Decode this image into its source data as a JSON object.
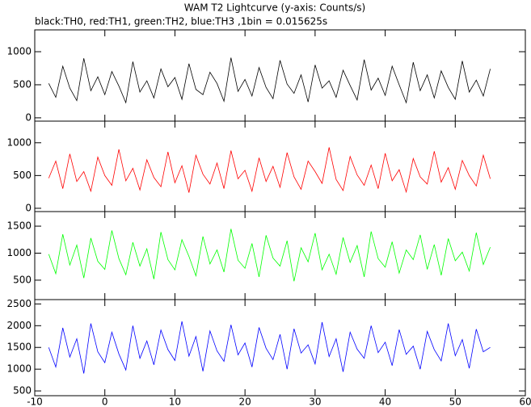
{
  "chart_data": [
    {
      "type": "line",
      "title": "WAM T2 Lightcurve (y-axis: Counts/s)",
      "subtitle": "black:TH0, red:TH1, green:TH2, blue:TH3 ,1bin = 0.015625s",
      "x": [
        -8,
        -7,
        -6,
        -5,
        -4,
        -3,
        -2,
        -1,
        0,
        1,
        2,
        3,
        4,
        5,
        6,
        7,
        8,
        9,
        10,
        11,
        12,
        13,
        14,
        15,
        16,
        17,
        18,
        19,
        20,
        21,
        22,
        23,
        24,
        25,
        26,
        27,
        28,
        29,
        30,
        31,
        32,
        33,
        34,
        35,
        36,
        37,
        38,
        39,
        40,
        41,
        42,
        43,
        44,
        45,
        46,
        47,
        48,
        49,
        50,
        51,
        52,
        53,
        54,
        55
      ],
      "xlim": [
        -10,
        60
      ],
      "xticks": [
        -10,
        0,
        10,
        20,
        30,
        40,
        50,
        60
      ],
      "ylim": [
        -50,
        1330
      ],
      "yticks": [
        0,
        500,
        1000
      ],
      "series": [
        {
          "color": "#000000",
          "values": [
            520,
            310,
            780,
            450,
            260,
            900,
            410,
            620,
            350,
            700,
            480,
            230,
            850,
            390,
            560,
            300,
            740,
            470,
            610,
            280,
            820,
            430,
            350,
            690,
            520,
            250,
            910,
            400,
            580,
            330,
            760,
            460,
            290,
            870,
            510,
            370,
            650,
            240,
            800,
            450,
            560,
            310,
            720,
            490,
            270,
            880,
            420,
            600,
            340,
            780,
            500,
            230,
            840,
            410,
            650,
            300,
            710,
            460,
            280,
            860,
            390,
            570,
            330,
            740
          ]
        }
      ]
    },
    {
      "type": "line",
      "x": [
        -8,
        -7,
        -6,
        -5,
        -4,
        -3,
        -2,
        -1,
        0,
        1,
        2,
        3,
        4,
        5,
        6,
        7,
        8,
        9,
        10,
        11,
        12,
        13,
        14,
        15,
        16,
        17,
        18,
        19,
        20,
        21,
        22,
        23,
        24,
        25,
        26,
        27,
        28,
        29,
        30,
        31,
        32,
        33,
        34,
        35,
        36,
        37,
        38,
        39,
        40,
        41,
        42,
        43,
        44,
        45,
        46,
        47,
        48,
        49,
        50,
        51,
        52,
        53,
        54,
        55
      ],
      "xlim": [
        -10,
        60
      ],
      "xticks": [
        -10,
        0,
        10,
        20,
        30,
        40,
        50,
        60
      ],
      "ylim": [
        -50,
        1330
      ],
      "yticks": [
        0,
        500,
        1000
      ],
      "series": [
        {
          "color": "#ff0000",
          "values": [
            460,
            720,
            300,
            830,
            410,
            560,
            260,
            780,
            500,
            350,
            900,
            420,
            610,
            280,
            740,
            470,
            330,
            860,
            390,
            650,
            240,
            810,
            520,
            370,
            690,
            300,
            880,
            450,
            580,
            260,
            770,
            410,
            640,
            320,
            850,
            480,
            290,
            720,
            560,
            380,
            930,
            440,
            270,
            790,
            510,
            350,
            660,
            300,
            840,
            420,
            590,
            250,
            760,
            480,
            370,
            870,
            400,
            620,
            290,
            730,
            500,
            340,
            810,
            450
          ]
        }
      ]
    },
    {
      "type": "line",
      "x": [
        -8,
        -7,
        -6,
        -5,
        -4,
        -3,
        -2,
        -1,
        0,
        1,
        2,
        3,
        4,
        5,
        6,
        7,
        8,
        9,
        10,
        11,
        12,
        13,
        14,
        15,
        16,
        17,
        18,
        19,
        20,
        21,
        22,
        23,
        24,
        25,
        26,
        27,
        28,
        29,
        30,
        31,
        32,
        33,
        34,
        35,
        36,
        37,
        38,
        39,
        40,
        41,
        42,
        43,
        44,
        45,
        46,
        47,
        48,
        49,
        50,
        51,
        52,
        53,
        54,
        55
      ],
      "xlim": [
        -10,
        60
      ],
      "xticks": [
        -10,
        0,
        10,
        20,
        30,
        40,
        50,
        60
      ],
      "ylim": [
        140,
        1770
      ],
      "yticks": [
        500,
        1000,
        1500
      ],
      "series": [
        {
          "color": "#00ff00",
          "values": [
            980,
            620,
            1350,
            780,
            1150,
            540,
            1280,
            850,
            700,
            1420,
            900,
            600,
            1200,
            760,
            1080,
            520,
            1390,
            880,
            690,
            1250,
            940,
            580,
            1310,
            800,
            1060,
            650,
            1450,
            870,
            720,
            1180,
            560,
            1330,
            910,
            760,
            1230,
            480,
            1100,
            840,
            1370,
            690,
            980,
            610,
            1290,
            830,
            1140,
            560,
            1400,
            900,
            740,
            1210,
            630,
            1060,
            880,
            1340,
            700,
            1160,
            590,
            1270,
            860,
            1020,
            670,
            1380,
            790,
            1110
          ]
        }
      ]
    },
    {
      "type": "line",
      "x": [
        -8,
        -7,
        -6,
        -5,
        -4,
        -3,
        -2,
        -1,
        0,
        1,
        2,
        3,
        4,
        5,
        6,
        7,
        8,
        9,
        10,
        11,
        12,
        13,
        14,
        15,
        16,
        17,
        18,
        19,
        20,
        21,
        22,
        23,
        24,
        25,
        26,
        27,
        28,
        29,
        30,
        31,
        32,
        33,
        34,
        35,
        36,
        37,
        38,
        39,
        40,
        41,
        42,
        43,
        44,
        45,
        46,
        47,
        48,
        49,
        50,
        51,
        52,
        53,
        54,
        55
      ],
      "xlim": [
        -10,
        60
      ],
      "xticks": [
        -10,
        0,
        10,
        20,
        30,
        40,
        50,
        60
      ],
      "ylim": [
        390,
        2600
      ],
      "yticks": [
        500,
        1000,
        1500,
        2000,
        2500
      ],
      "series": [
        {
          "color": "#0000ff",
          "values": [
            1500,
            1050,
            1950,
            1280,
            1700,
            900,
            2050,
            1400,
            1150,
            1850,
            1350,
            980,
            2000,
            1250,
            1650,
            1100,
            1900,
            1450,
            1200,
            2100,
            1300,
            1750,
            950,
            1880,
            1420,
            1180,
            2020,
            1330,
            1600,
            1050,
            1960,
            1480,
            1220,
            1800,
            1000,
            1930,
            1370,
            1560,
            1120,
            2080,
            1290,
            1700,
            940,
            1850,
            1460,
            1250,
            2000,
            1380,
            1620,
            1080,
            1910,
            1340,
            1530,
            1000,
            1870,
            1450,
            1190,
            2050,
            1310,
            1680,
            1020,
            1920,
            1400,
            1500
          ]
        }
      ]
    }
  ]
}
